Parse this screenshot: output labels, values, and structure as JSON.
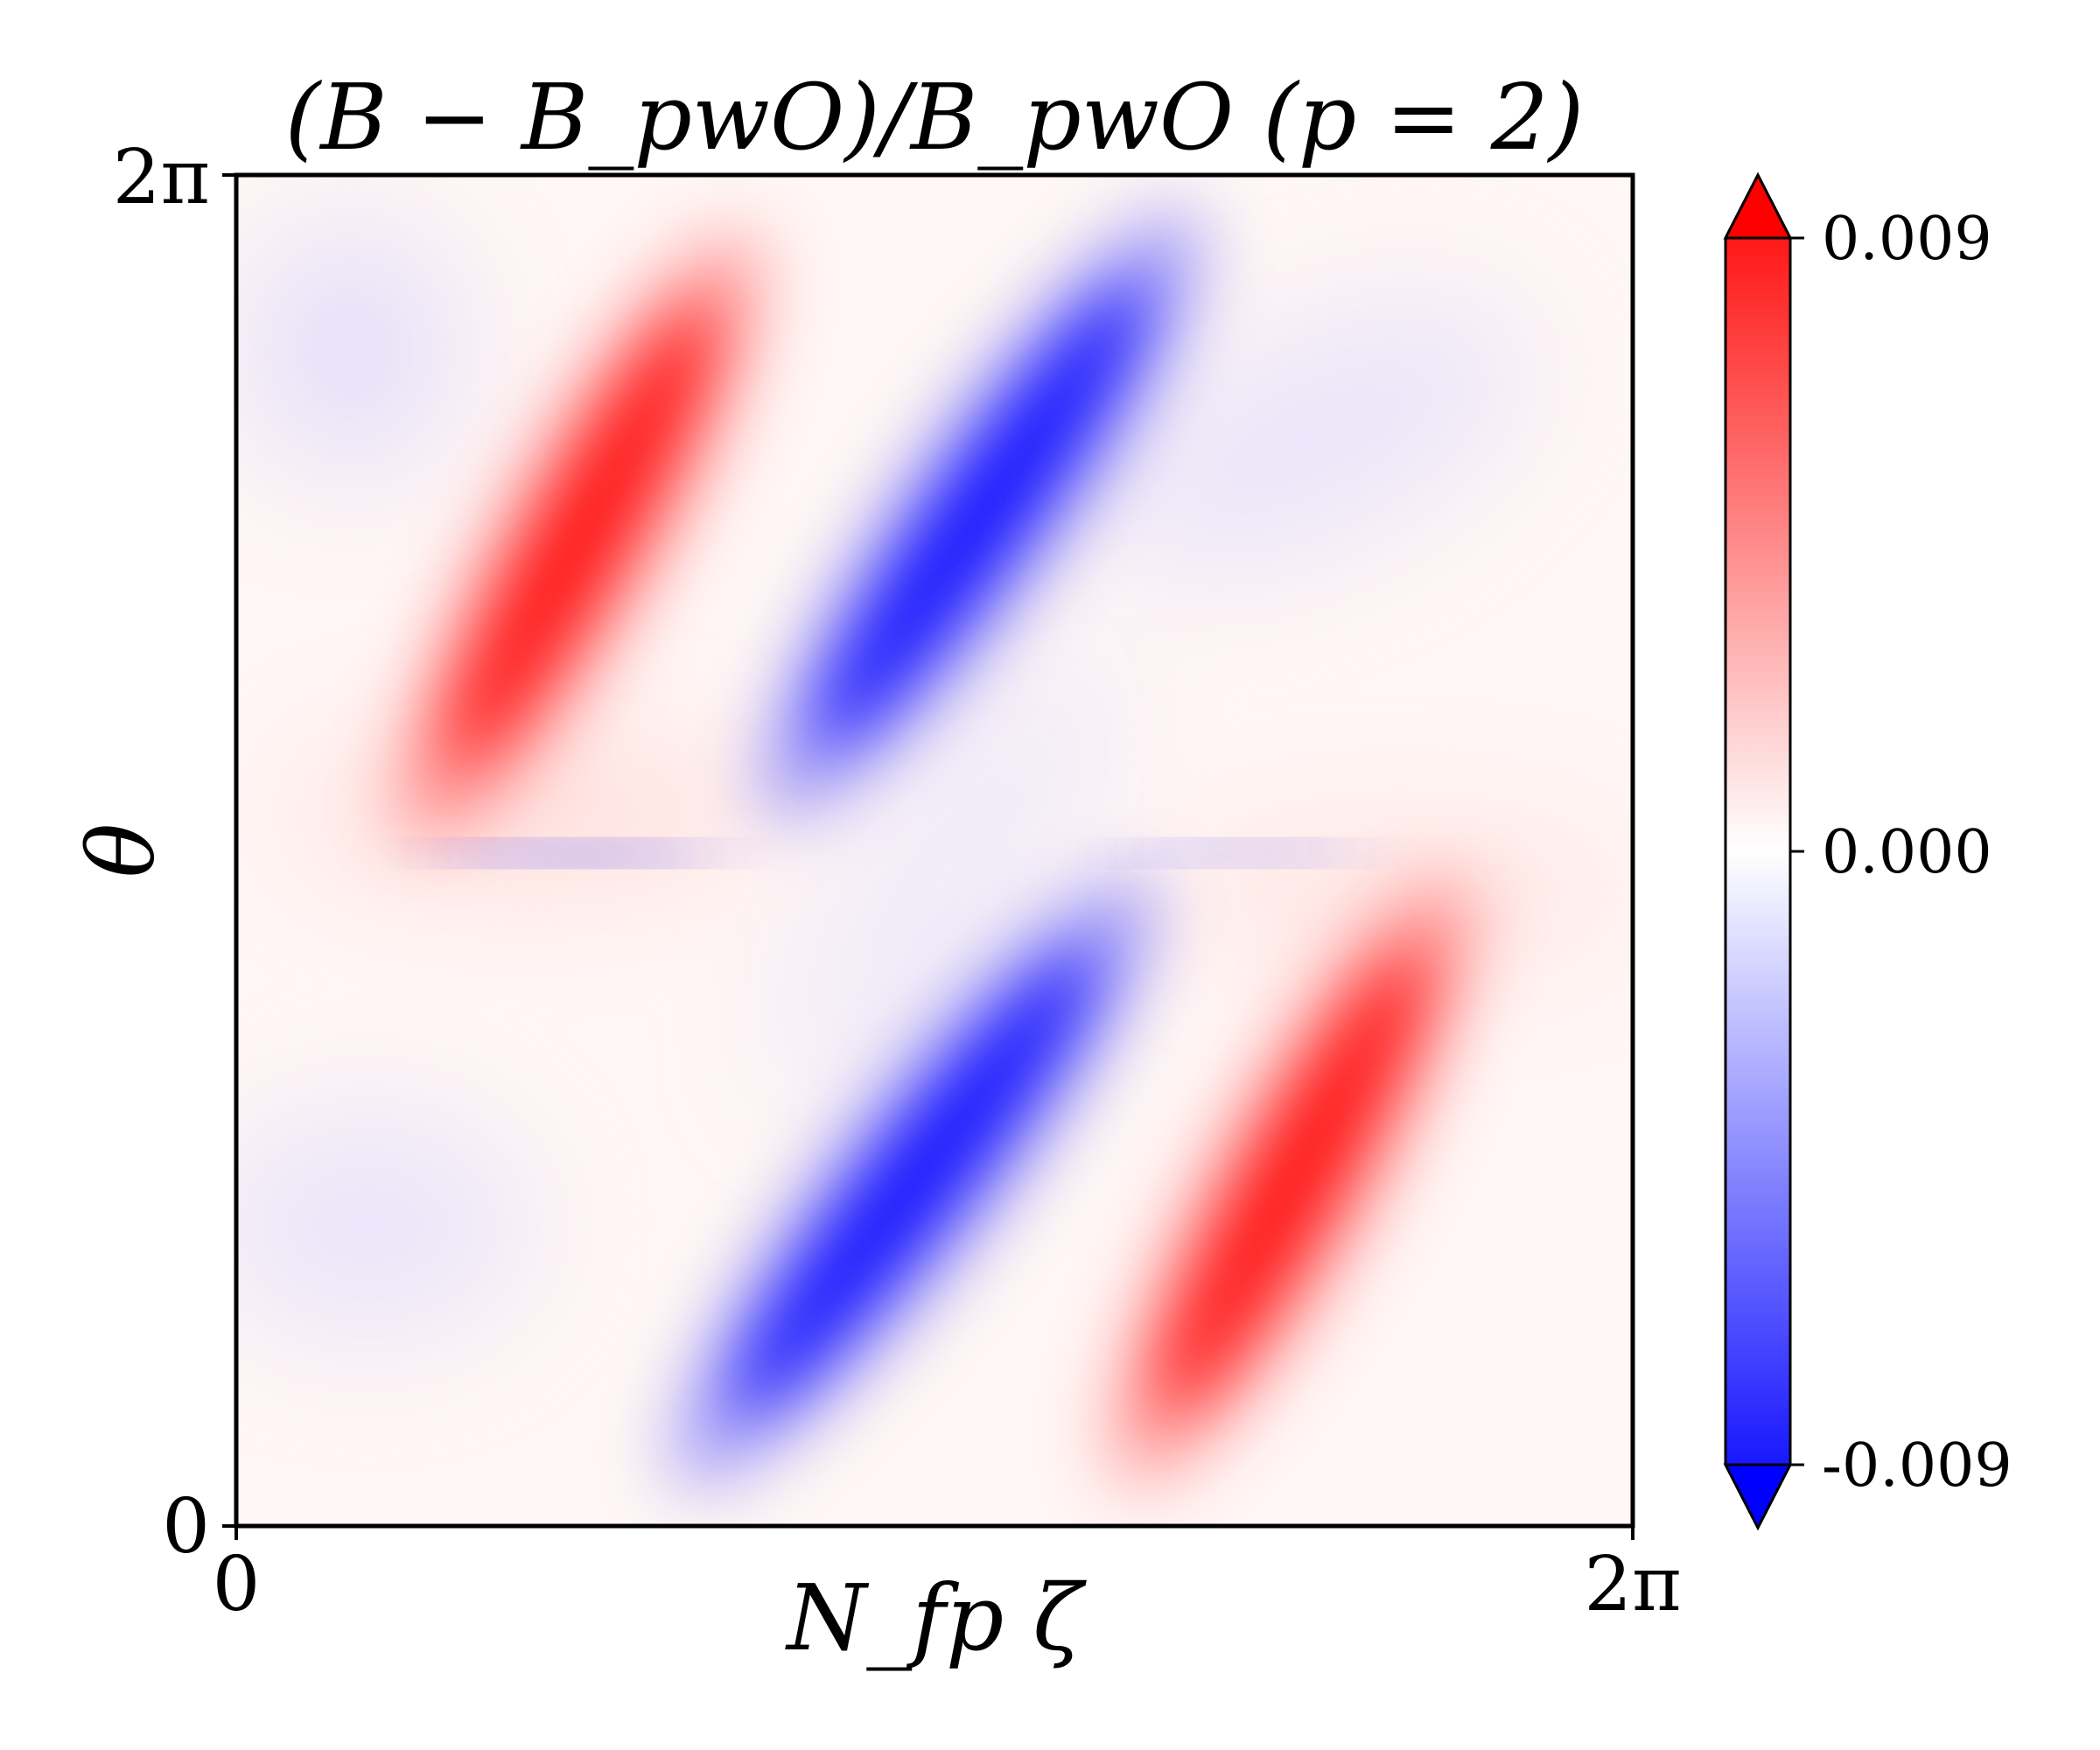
{
  "chart_data": {
    "type": "heatmap",
    "title": "(B − B_pwO)/B_pwO (p = 2)",
    "xlabel": "N_fp ζ",
    "ylabel": "θ",
    "x_ticks": [
      "0",
      "2π"
    ],
    "y_ticks": [
      "0",
      "2π"
    ],
    "xlim": [
      0,
      6.283
    ],
    "ylim": [
      0,
      6.283
    ],
    "colormap": "bwr",
    "colorbar": {
      "ticks": [
        "0.009",
        "0.000",
        "-0.009"
      ],
      "vmin": -0.009,
      "vmax": 0.009,
      "extend": "both"
    },
    "colors": {
      "positive": "#ff0000",
      "zero": "#ffffff",
      "negative": "#0000ff"
    },
    "features": [
      {
        "sign": "positive",
        "zeta_range": [
          0.8,
          2.3
        ],
        "theta_range": [
          3.2,
          6.0
        ],
        "peak": 0.009
      },
      {
        "sign": "negative",
        "zeta_range": [
          2.4,
          4.3
        ],
        "theta_range": [
          3.3,
          6.1
        ],
        "peak": -0.009
      },
      {
        "sign": "negative",
        "zeta_range": [
          2.0,
          4.1
        ],
        "theta_range": [
          0.2,
          3.0
        ],
        "peak": -0.009
      },
      {
        "sign": "positive",
        "zeta_range": [
          4.0,
          5.5
        ],
        "theta_range": [
          0.2,
          3.0
        ],
        "peak": 0.009
      }
    ]
  }
}
